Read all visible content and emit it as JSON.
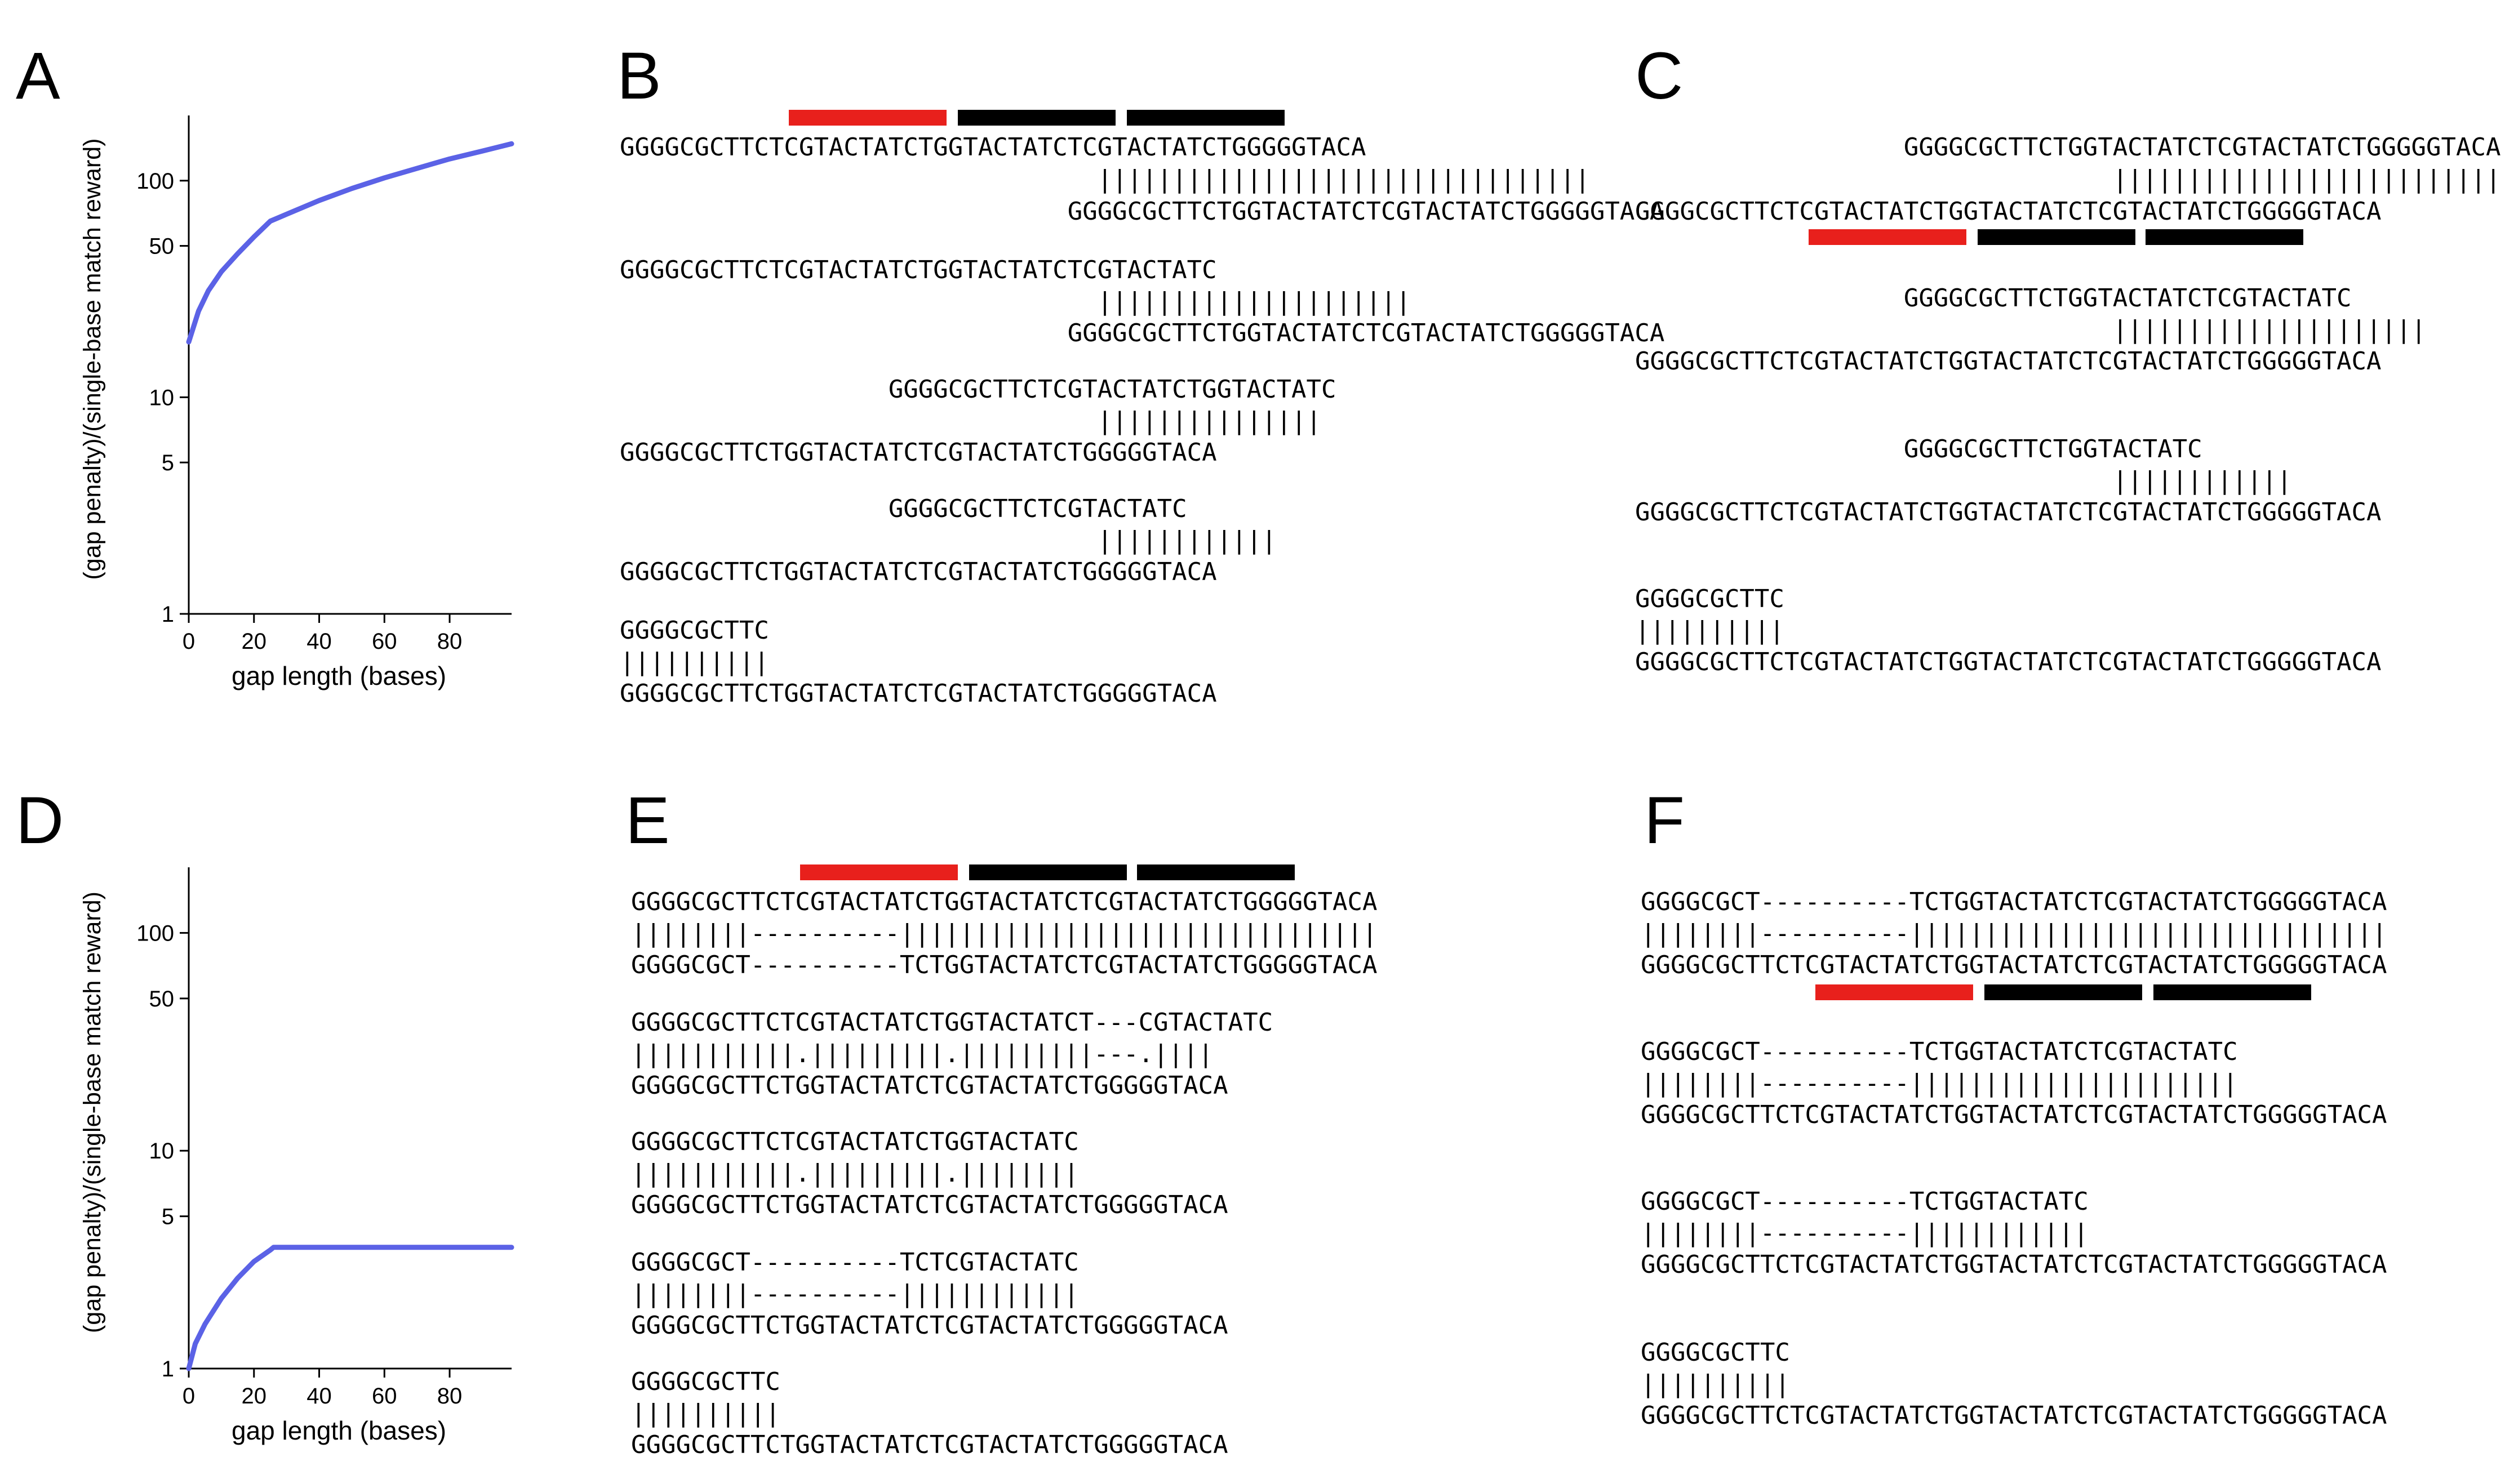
{
  "panels": {
    "A": "A",
    "B": "B",
    "C": "C",
    "D": "D",
    "E": "E",
    "F": "F"
  },
  "colors": {
    "curve": "#5b62e6",
    "red_bar": "#e8201c",
    "black_bar": "#000000"
  },
  "chart_data": [
    {
      "panel": "A",
      "type": "line",
      "xlabel": "gap length (bases)",
      "ylabel": "(gap penalty)/(single-base match reward)",
      "yscale": "log",
      "xlim": [
        0,
        99
      ],
      "ylim": [
        1,
        200
      ],
      "xticks": [
        "0",
        "20",
        "40",
        "60",
        "80"
      ],
      "yticks": [
        "1",
        "5",
        "10",
        "50",
        "100"
      ],
      "series": [
        {
          "x": [
            0,
            3,
            6,
            10,
            15,
            20,
            25,
            30,
            40,
            50,
            60,
            70,
            80,
            90,
            99
          ],
          "y": [
            18,
            25,
            31,
            38,
            46,
            55,
            65,
            70,
            81,
            92,
            103,
            114,
            126,
            137,
            148
          ]
        }
      ]
    },
    {
      "panel": "D",
      "type": "line",
      "xlabel": "gap length (bases)",
      "ylabel": "(gap penalty)/(single-base match reward)",
      "yscale": "log",
      "xlim": [
        0,
        99
      ],
      "ylim": [
        1,
        200
      ],
      "xticks": [
        "0",
        "20",
        "40",
        "60",
        "80"
      ],
      "yticks": [
        "1",
        "5",
        "10",
        "50",
        "100"
      ],
      "series": [
        {
          "x": [
            0,
            2,
            5,
            10,
            15,
            20,
            25,
            26,
            40,
            60,
            80,
            99
          ],
          "y": [
            1,
            1.3,
            1.6,
            2.1,
            2.6,
            3.1,
            3.5,
            3.6,
            3.6,
            3.6,
            3.6,
            3.6
          ]
        }
      ]
    }
  ],
  "alignments": {
    "B": [
      "GGGGCGCTTCTCGTACTATCTGGTACTATCTCGTACTATCTGGGGGTACA",
      "                                |||||||||||||||||||||||||||||||||",
      "                              GGGGCGCTTCTGGTACTATCTCGTACTATCTGGGGGTACA",
      "GGGGCGCTTCTCGTACTATCTGGTACTATCTCGTACTATC",
      "                                |||||||||||||||||||||",
      "                              GGGGCGCTTCTGGTACTATCTCGTACTATCTGGGGGTACA",
      "                  GGGGCGCTTCTCGTACTATCTGGTACTATC",
      "                                |||||||||||||||",
      "GGGGCGCTTCTGGTACTATCTCGTACTATCTGGGGGTACA",
      "                  GGGGCGCTTCTCGTACTATC",
      "                                ||||||||||||",
      "GGGGCGCTTCTGGTACTATCTCGTACTATCTGGGGGTACA",
      "GGGGCGCTTC",
      "||||||||||",
      "GGGGCGCTTCTGGTACTATCTCGTACTATCTGGGGGTACA"
    ],
    "C": [
      "                  GGGGCGCTTCTGGTACTATCTCGTACTATCTGGGGGTACA",
      "                                |||||||||||||||||||||||||||||||||",
      "GGGGCGCTTCTCGTACTATCTGGTACTATCTCGTACTATCTGGGGGTACA",
      "                  GGGGCGCTTCTGGTACTATCTCGTACTATC",
      "                                |||||||||||||||||||||",
      "GGGGCGCTTCTCGTACTATCTGGTACTATCTCGTACTATCTGGGGGTACA",
      "                  GGGGCGCTTCTGGTACTATC",
      "                                ||||||||||||",
      "GGGGCGCTTCTCGTACTATCTGGTACTATCTCGTACTATCTGGGGGTACA",
      "GGGGCGCTTC",
      "||||||||||",
      "GGGGCGCTTCTCGTACTATCTGGTACTATCTCGTACTATCTGGGGGTACA"
    ],
    "E": [
      "GGGGCGCTTCTCGTACTATCTGGTACTATCTCGTACTATCTGGGGGTACA",
      "||||||||----------||||||||||||||||||||||||||||||||",
      "GGGGCGCT----------TCTGGTACTATCTCGTACTATCTGGGGGTACA",
      "GGGGCGCTTCTCGTACTATCTGGTACTATCT---CGTACTATC",
      "|||||||||||.|||||||||.|||||||||---.||||",
      "GGGGCGCTTCTGGTACTATCTCGTACTATCTGGGGGTACA",
      "GGGGCGCTTCTCGTACTATCTGGTACTATC",
      "|||||||||||.|||||||||.||||||||",
      "GGGGCGCTTCTGGTACTATCTCGTACTATCTGGGGGTACA",
      "GGGGCGCT----------TCTCGTACTATC",
      "||||||||----------||||||||||||",
      "GGGGCGCTTCTGGTACTATCTCGTACTATCTGGGGGTACA",
      "GGGGCGCTTC",
      "||||||||||",
      "GGGGCGCTTCTGGTACTATCTCGTACTATCTGGGGGTACA"
    ],
    "F": [
      "GGGGCGCT----------TCTGGTACTATCTCGTACTATCTGGGGGTACA",
      "||||||||----------||||||||||||||||||||||||||||||||",
      "GGGGCGCTTCTCGTACTATCTGGTACTATCTCGTACTATCTGGGGGTACA",
      "GGGGCGCT----------TCTGGTACTATCTCGTACTATC",
      "||||||||----------||||||||||||||||||||||",
      "GGGGCGCTTCTCGTACTATCTGGTACTATCTCGTACTATCTGGGGGTACA",
      "GGGGCGCT----------TCTGGTACTATC",
      "||||||||----------||||||||||||",
      "GGGGCGCTTCTCGTACTATCTGGTACTATCTCGTACTATCTGGGGGTACA",
      "GGGGCGCTTC",
      "||||||||||",
      "GGGGCGCTTCTCGTACTATCTGGTACTATCTCGTACTATCTGGGGGTACA"
    ]
  }
}
